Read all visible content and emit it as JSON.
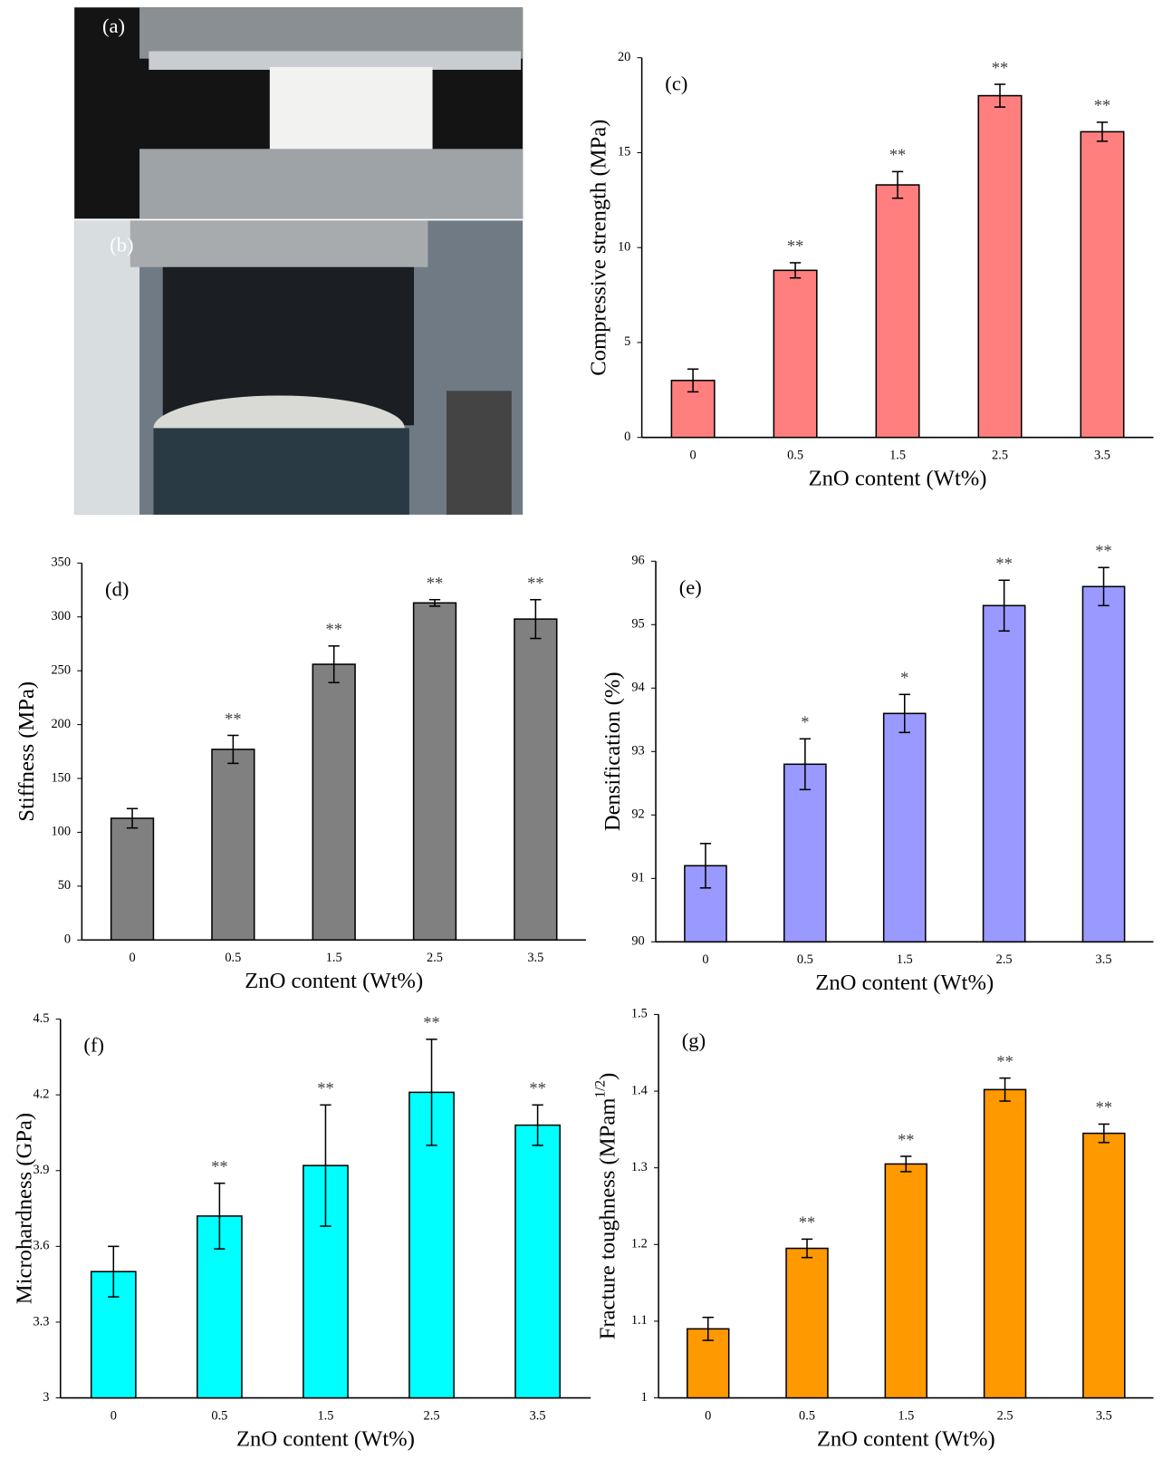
{
  "photo_labels": [
    "(a)",
    "(b)"
  ],
  "chart_data": [
    {
      "type": "bar",
      "panel_label": "(c)",
      "ylabel": "Compressive strength (MPa)",
      "xlabel": "ZnO content (Wt%)",
      "categories": [
        "0",
        "0.5",
        "1.5",
        "2.5",
        "3.5"
      ],
      "values": [
        3.0,
        8.8,
        13.3,
        18.0,
        16.1
      ],
      "errors": [
        0.6,
        0.4,
        0.7,
        0.6,
        0.5
      ],
      "annotations": [
        null,
        "**",
        "**",
        "**",
        "**"
      ],
      "color": "#ff7f7f",
      "ylim": [
        0,
        20
      ],
      "yticks": [
        0,
        5,
        10,
        15,
        20
      ]
    },
    {
      "type": "bar",
      "panel_label": "(d)",
      "ylabel": "Stiffness (MPa)",
      "xlabel": "ZnO content (Wt%)",
      "categories": [
        "0",
        "0.5",
        "1.5",
        "2.5",
        "3.5"
      ],
      "values": [
        113,
        177,
        256,
        313,
        298
      ],
      "errors": [
        9,
        13,
        17,
        3,
        18
      ],
      "annotations": [
        null,
        "**",
        "**",
        "**",
        "**"
      ],
      "color": "#808080",
      "ylim": [
        0,
        350
      ],
      "yticks": [
        0,
        50,
        100,
        150,
        200,
        250,
        300,
        350
      ]
    },
    {
      "type": "bar",
      "panel_label": "(e)",
      "ylabel": "Densification (%)",
      "xlabel": "ZnO content (Wt%)",
      "categories": [
        "0",
        "0.5",
        "1.5",
        "2.5",
        "3.5"
      ],
      "values": [
        91.2,
        92.8,
        93.6,
        95.3,
        95.6
      ],
      "errors": [
        0.35,
        0.4,
        0.3,
        0.4,
        0.3
      ],
      "annotations": [
        null,
        "*",
        "*",
        "**",
        "**"
      ],
      "color": "#9999ff",
      "ylim": [
        90,
        96
      ],
      "yticks": [
        90,
        91,
        92,
        93,
        94,
        95,
        96
      ]
    },
    {
      "type": "bar",
      "panel_label": "(f)",
      "ylabel": "Microhardness (GPa)",
      "xlabel": "ZnO content (Wt%)",
      "categories": [
        "0",
        "0.5",
        "1.5",
        "2.5",
        "3.5"
      ],
      "values": [
        3.5,
        3.72,
        3.92,
        4.21,
        4.08
      ],
      "errors": [
        0.1,
        0.13,
        0.24,
        0.21,
        0.08
      ],
      "annotations": [
        null,
        "**",
        "**",
        "**",
        "**"
      ],
      "color": "#00ffff",
      "ylim": [
        3,
        4.5
      ],
      "yticks": [
        3,
        3.3,
        3.6,
        3.9,
        4.2,
        4.5
      ]
    },
    {
      "type": "bar",
      "panel_label": "(g)",
      "ylabel": "Fracture toughness (MPam",
      "ylabel_sup": "1/2",
      "ylabel_end": ")",
      "xlabel": "ZnO content (Wt%)",
      "categories": [
        "0",
        "0.5",
        "1.5",
        "2.5",
        "3.5"
      ],
      "values": [
        1.09,
        1.195,
        1.305,
        1.402,
        1.345
      ],
      "errors": [
        0.015,
        0.012,
        0.01,
        0.015,
        0.012
      ],
      "annotations": [
        null,
        "**",
        "**",
        "**",
        "**"
      ],
      "color": "#ff9900",
      "ylim": [
        1,
        1.5
      ],
      "yticks": [
        1,
        1.1,
        1.2,
        1.3,
        1.4,
        1.5
      ]
    }
  ]
}
